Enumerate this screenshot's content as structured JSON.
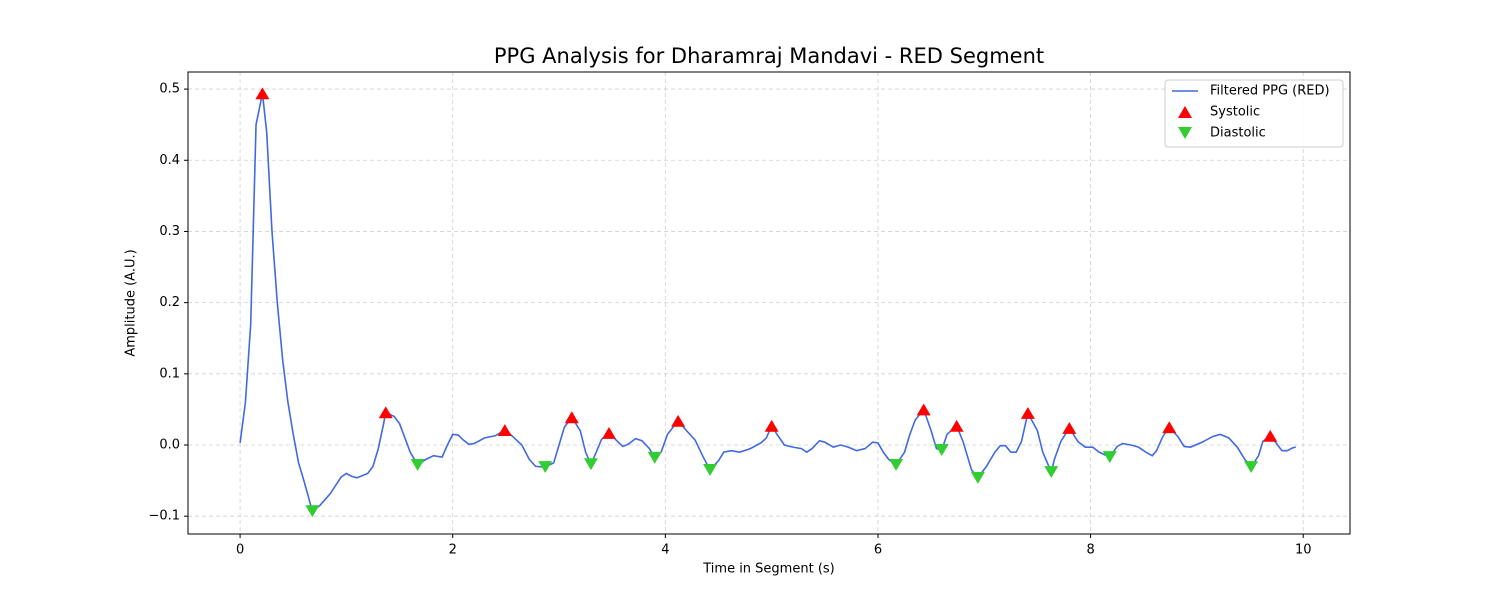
{
  "chart_data": {
    "type": "line",
    "title": "PPG Analysis for Dharamraj Mandavi - RED Segment",
    "x_label": "Time in Segment (s)",
    "y_label": "Amplitude (A.U.)",
    "xlim": [
      -0.49,
      10.44
    ],
    "ylim": [
      -0.125,
      0.524
    ],
    "xticks": [
      0,
      2,
      4,
      6,
      8,
      10
    ],
    "yticks": [
      {
        "value": -0.1,
        "label": "−0.1"
      },
      {
        "value": 0,
        "label": "0.0"
      },
      0.1,
      0.2,
      0.3,
      0.4,
      0.5
    ],
    "grid": true,
    "legend": "upper right",
    "series": [
      {
        "name": "Filtered PPG (RED)",
        "type": "line",
        "color": "#4169e1",
        "x": [
          0,
          0.05,
          0.1,
          0.15,
          0.21,
          0.25,
          0.3,
          0.35,
          0.4,
          0.45,
          0.5,
          0.55,
          0.6,
          0.68,
          0.75,
          0.85,
          0.95,
          1.0,
          1.05,
          1.1,
          1.2,
          1.25,
          1.3,
          1.35,
          1.37,
          1.45,
          1.5,
          1.55,
          1.6,
          1.67,
          1.75,
          1.82,
          1.9,
          1.95,
          2.0,
          2.05,
          2.1,
          2.15,
          2.2,
          2.3,
          2.4,
          2.49,
          2.55,
          2.65,
          2.72,
          2.78,
          2.87,
          2.95,
          3.0,
          3.05,
          3.12,
          3.2,
          3.25,
          3.3,
          3.35,
          3.4,
          3.47,
          3.55,
          3.6,
          3.65,
          3.72,
          3.78,
          3.85,
          3.9,
          3.96,
          4.02,
          4.12,
          4.2,
          4.28,
          4.35,
          4.42,
          4.5,
          4.55,
          4.62,
          4.7,
          4.8,
          4.9,
          4.95,
          5.0,
          5.05,
          5.12,
          5.2,
          5.28,
          5.33,
          5.38,
          5.45,
          5.5,
          5.58,
          5.65,
          5.72,
          5.8,
          5.88,
          5.95,
          6.0,
          6.05,
          6.1,
          6.17,
          6.25,
          6.3,
          6.35,
          6.43,
          6.5,
          6.55,
          6.6,
          6.65,
          6.74,
          6.8,
          6.88,
          6.94,
          7.02,
          7.1,
          7.15,
          7.2,
          7.25,
          7.3,
          7.35,
          7.41,
          7.5,
          7.55,
          7.63,
          7.66,
          7.72,
          7.8,
          7.88,
          7.95,
          8.02,
          8.08,
          8.18,
          8.25,
          8.3,
          8.38,
          8.45,
          8.52,
          8.58,
          8.62,
          8.68,
          8.74,
          8.82,
          8.88,
          8.94,
          9.05,
          9.15,
          9.22,
          9.3,
          9.38,
          9.45,
          9.51,
          9.58,
          9.62,
          9.69,
          9.75,
          9.8,
          9.85,
          9.9,
          9.93
        ],
        "values": [
          0.003,
          0.06,
          0.17,
          0.45,
          0.494,
          0.44,
          0.3,
          0.2,
          0.12,
          0.06,
          0.015,
          -0.025,
          -0.05,
          -0.093,
          -0.085,
          -0.068,
          -0.045,
          -0.04,
          -0.044,
          -0.046,
          -0.04,
          -0.03,
          -0.005,
          0.03,
          0.046,
          0.04,
          0.03,
          0.01,
          -0.01,
          -0.028,
          -0.02,
          -0.015,
          -0.017,
          0.0,
          0.015,
          0.014,
          0.007,
          0.001,
          0.002,
          0.01,
          0.013,
          0.021,
          0.014,
          0.0,
          -0.02,
          -0.03,
          -0.031,
          -0.025,
          0.0,
          0.025,
          0.039,
          0.02,
          -0.01,
          -0.027,
          -0.01,
          0.008,
          0.017,
          0.005,
          -0.002,
          0.001,
          0.009,
          0.006,
          -0.005,
          -0.018,
          -0.01,
          0.015,
          0.034,
          0.02,
          0.007,
          -0.015,
          -0.035,
          -0.022,
          -0.01,
          -0.008,
          -0.01,
          -0.005,
          0.003,
          0.01,
          0.027,
          0.015,
          0.0,
          -0.003,
          -0.005,
          -0.01,
          -0.005,
          0.006,
          0.004,
          -0.003,
          0.0,
          -0.003,
          -0.008,
          -0.005,
          0.004,
          0.003,
          -0.01,
          -0.02,
          -0.028,
          -0.01,
          0.015,
          0.035,
          0.05,
          0.02,
          -0.005,
          -0.007,
          0.015,
          0.027,
          0.005,
          -0.035,
          -0.046,
          -0.03,
          -0.01,
          -0.001,
          -0.001,
          -0.01,
          -0.01,
          0.005,
          0.045,
          0.02,
          -0.01,
          -0.038,
          -0.02,
          0.005,
          0.024,
          0.005,
          -0.003,
          -0.003,
          -0.01,
          -0.017,
          -0.002,
          0.002,
          0.0,
          -0.003,
          -0.01,
          -0.015,
          -0.008,
          0.012,
          0.025,
          0.012,
          -0.002,
          -0.003,
          0.004,
          0.012,
          0.015,
          0.01,
          -0.003,
          -0.02,
          -0.031,
          -0.015,
          0.005,
          0.013,
          0.002,
          -0.008,
          -0.008,
          -0.004,
          -0.003
        ]
      },
      {
        "name": "Systolic",
        "type": "scatter",
        "marker": "up",
        "color": "#ff0000",
        "x": [
          0.21,
          1.37,
          2.49,
          3.12,
          3.47,
          4.12,
          5.0,
          6.43,
          6.74,
          7.41,
          7.8,
          8.74,
          9.69
        ],
        "values": [
          0.494,
          0.046,
          0.021,
          0.039,
          0.017,
          0.034,
          0.027,
          0.05,
          0.027,
          0.045,
          0.024,
          0.025,
          0.013
        ]
      },
      {
        "name": "Diastolic",
        "type": "scatter",
        "marker": "down",
        "color": "#32cd32",
        "x": [
          0.68,
          1.67,
          2.87,
          3.3,
          3.9,
          4.42,
          6.17,
          6.6,
          6.94,
          7.63,
          8.18,
          9.51
        ],
        "values": [
          -0.093,
          -0.028,
          -0.031,
          -0.027,
          -0.018,
          -0.035,
          -0.028,
          -0.007,
          -0.046,
          -0.038,
          -0.017,
          -0.031
        ]
      }
    ]
  }
}
